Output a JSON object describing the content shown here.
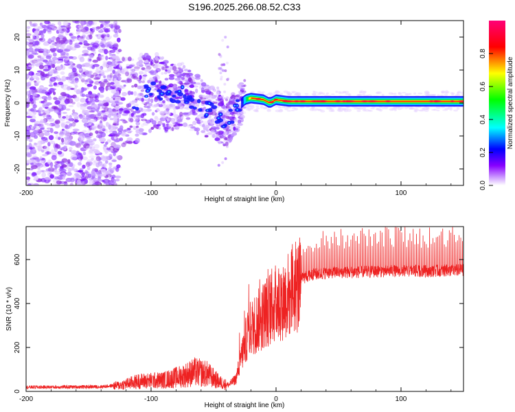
{
  "title": "S196.2025.266.08.52.C33",
  "chart_data": [
    {
      "type": "heatmap",
      "xlabel": "Height of straight line (km)",
      "ylabel": "Frequency (Hz)",
      "xlim": [
        -200,
        150
      ],
      "ylim": [
        -25,
        25
      ],
      "xticks": [
        -200,
        -100,
        0,
        100
      ],
      "xtick_labels": [
        "-200",
        "-100",
        "0",
        "100"
      ],
      "yticks": [
        -20,
        -10,
        0,
        10,
        20
      ],
      "ytick_labels": [
        "-20",
        "-10",
        "0",
        "10",
        "20"
      ],
      "colorbar": {
        "label": "Normalized spectral amplitude",
        "ticks": [
          0.0,
          0.2,
          0.4,
          0.6,
          0.8
        ],
        "tick_labels": [
          "0.0",
          "0.2",
          "0.4",
          "0.6",
          "0.8"
        ],
        "range": [
          0,
          1
        ],
        "colors": [
          "#ffffff",
          "#8800ff",
          "#0000ff",
          "#00ffff",
          "#00ff00",
          "#ffff00",
          "#ff0000",
          "#ff00aa"
        ]
      },
      "ridge": [
        {
          "x": -110,
          "y": 2
        },
        {
          "x": -95,
          "y": 4
        },
        {
          "x": -85,
          "y": 1
        },
        {
          "x": -75,
          "y": 3
        },
        {
          "x": -60,
          "y": -1
        },
        {
          "x": -50,
          "y": -3
        },
        {
          "x": -40,
          "y": -6
        },
        {
          "x": -35,
          "y": -4
        },
        {
          "x": -30,
          "y": -1
        },
        {
          "x": -25,
          "y": 1
        },
        {
          "x": -20,
          "y": 1.5
        },
        {
          "x": -10,
          "y": 1
        },
        {
          "x": -5,
          "y": 0
        },
        {
          "x": 0,
          "y": 1
        },
        {
          "x": 10,
          "y": 0.5
        },
        {
          "x": 50,
          "y": 0.5
        },
        {
          "x": 100,
          "y": 0.5
        },
        {
          "x": 150,
          "y": 0.5
        }
      ]
    },
    {
      "type": "line",
      "xlabel": "Height of straight line (km)",
      "ylabel": "SNR (10 * v/v)",
      "xlim": [
        -200,
        150
      ],
      "ylim": [
        0,
        750
      ],
      "xticks": [
        -200,
        -100,
        0,
        100
      ],
      "xtick_labels": [
        "-200",
        "-100",
        "0",
        "100"
      ],
      "yticks": [
        0,
        200,
        400,
        600
      ],
      "ytick_labels": [
        "0",
        "200",
        "400",
        "600"
      ],
      "series": [
        {
          "name": "SNR",
          "color": "#ee2222",
          "envelope": [
            {
              "x": -200,
              "y": 20
            },
            {
              "x": -140,
              "y": 22
            },
            {
              "x": -125,
              "y": 30
            },
            {
              "x": -110,
              "y": 50
            },
            {
              "x": -90,
              "y": 55
            },
            {
              "x": -75,
              "y": 75
            },
            {
              "x": -65,
              "y": 95
            },
            {
              "x": -55,
              "y": 85
            },
            {
              "x": -45,
              "y": 45
            },
            {
              "x": -38,
              "y": 30
            },
            {
              "x": -32,
              "y": 60
            },
            {
              "x": -28,
              "y": 160
            },
            {
              "x": -22,
              "y": 290
            },
            {
              "x": -15,
              "y": 330
            },
            {
              "x": -8,
              "y": 380
            },
            {
              "x": 0,
              "y": 420
            },
            {
              "x": 8,
              "y": 450
            },
            {
              "x": 15,
              "y": 490
            },
            {
              "x": 22,
              "y": 520
            },
            {
              "x": 30,
              "y": 535
            },
            {
              "x": 45,
              "y": 545
            },
            {
              "x": 60,
              "y": 545
            },
            {
              "x": 80,
              "y": 548
            },
            {
              "x": 100,
              "y": 552
            },
            {
              "x": 120,
              "y": 550
            },
            {
              "x": 150,
              "y": 555
            }
          ]
        }
      ]
    }
  ]
}
